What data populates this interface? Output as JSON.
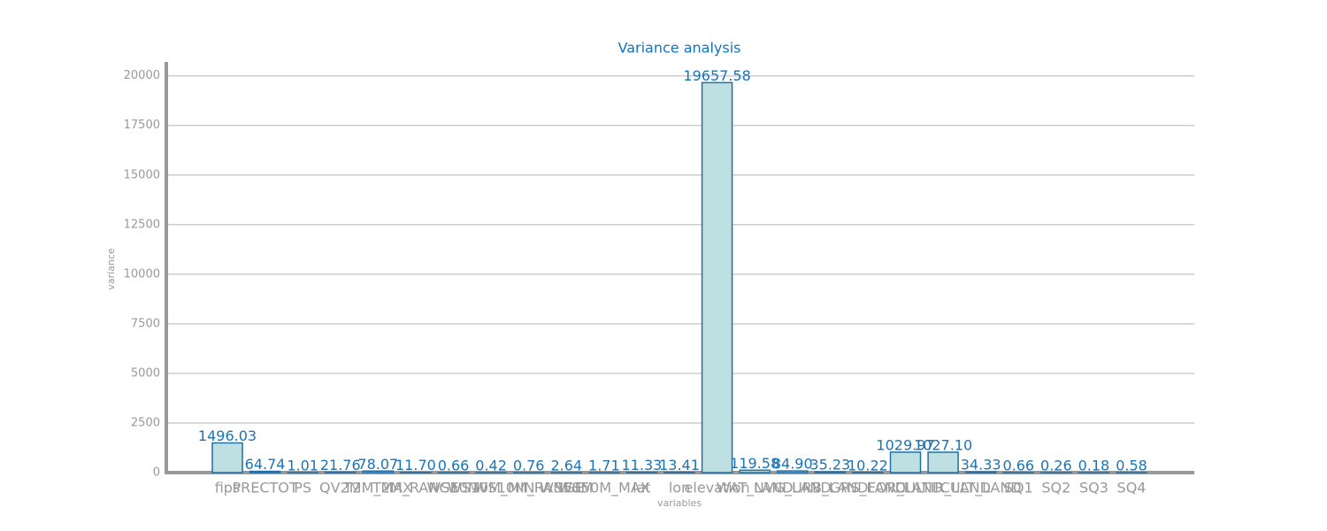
{
  "chart_data": {
    "type": "bar",
    "title": "Variance analysis",
    "x_label": "variables",
    "y_label": "variance",
    "categories": [
      "fips",
      "PRECTOT",
      "PS",
      "QV2M",
      "T2M_MAX",
      "T2M_RANGE",
      "WS10M",
      "WS10M_MIN",
      "WS10M_RANGE",
      "WS50M",
      "WS50M_MAX",
      "lat",
      "lon",
      "elevation",
      "WAT_LAND",
      "NVG_LAND",
      "URB_LAND",
      "GRS_LAND",
      "FOR_LAND",
      "CULTIR_LAND",
      "CULT_LAND",
      "SQ1",
      "SQ2",
      "SQ3",
      "SQ4"
    ],
    "values": [
      1496.03,
      64.74,
      1.01,
      21.76,
      78.07,
      11.7,
      0.66,
      0.42,
      0.76,
      2.64,
      1.71,
      11.33,
      13.41,
      19657.58,
      119.58,
      84.9,
      35.23,
      10.22,
      1029.97,
      1027.1,
      34.33,
      0.66,
      0.26,
      0.18,
      0.58
    ],
    "value_labels": [
      "1496.03",
      "64.74",
      "1.01",
      "21.76",
      "78.07",
      "11.70",
      "0.66",
      "0.42",
      "0.76",
      "2.64",
      "1.71",
      "11.33",
      "13.41",
      "19657.58",
      "119.58",
      "84.90",
      "35.23",
      "10.22",
      "1029.97",
      "1027.10",
      "34.33",
      "0.66",
      "0.26",
      "0.18",
      "0.58"
    ],
    "color": "#bfe0e3",
    "edge_color": "#1f6fa8",
    "ylim": [
      0,
      20700
    ],
    "yticks": [
      0,
      2500,
      5000,
      7500,
      10000,
      12500,
      15000,
      17500,
      20000
    ],
    "grid": true
  }
}
